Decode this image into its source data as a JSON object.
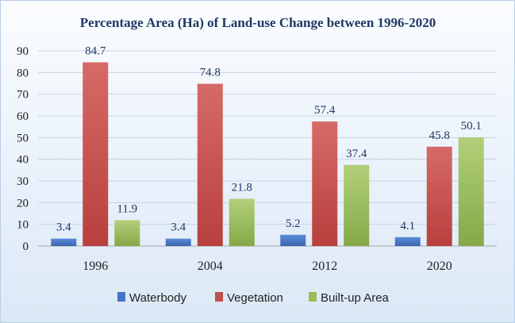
{
  "chart_data": {
    "type": "bar",
    "title": "Percentage Area (Ha)  of Land-use  Change between 1996-2020",
    "xlabel": "",
    "ylabel": "",
    "ylim": [
      0,
      90
    ],
    "yticks": [
      0,
      10,
      20,
      30,
      40,
      50,
      60,
      70,
      80,
      90
    ],
    "grid": true,
    "legend_position": "bottom",
    "categories": [
      "1996",
      "2004",
      "2012",
      "2020"
    ],
    "series": [
      {
        "name": "Waterbody",
        "color": "#4472c4",
        "values": [
          3.4,
          3.4,
          5.2,
          4.1
        ]
      },
      {
        "name": "Vegetation",
        "color": "#c0504d",
        "values": [
          84.7,
          74.8,
          57.4,
          45.8
        ]
      },
      {
        "name": "Built-up Area",
        "color": "#9bbb59",
        "values": [
          11.9,
          21.8,
          37.4,
          50.1
        ]
      }
    ]
  }
}
